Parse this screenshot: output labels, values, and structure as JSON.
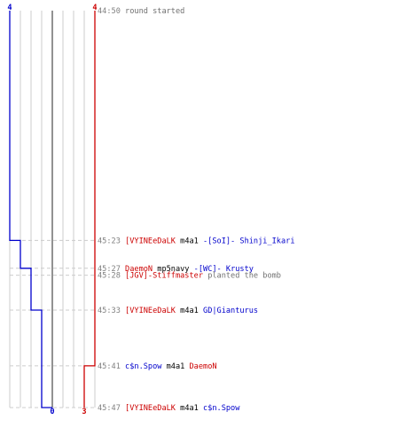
{
  "colors": {
    "team_a": "#0000cc",
    "team_b": "#cc0000",
    "time": "#808080",
    "grid": "#cccccc",
    "center": "#777777",
    "weapon": "#000000",
    "note": "#707070"
  },
  "chart_data": {
    "type": "line",
    "ylim": [
      "44:50",
      "45:47"
    ],
    "grid": true,
    "series": [
      {
        "team": "team_a",
        "start_label": "4",
        "end_label": "0",
        "x": [
          "44:50",
          "45:23",
          "45:27",
          "45:33",
          "45:47"
        ],
        "y": [
          4,
          3,
          2,
          1,
          0
        ]
      },
      {
        "team": "team_b",
        "start_label": "4",
        "end_label": "3",
        "x": [
          "44:50",
          "45:41"
        ],
        "y": [
          4,
          3
        ]
      }
    ]
  },
  "events": [
    {
      "time": "44:50",
      "note": "round started"
    },
    {
      "time": "45:23",
      "killer": "[VYINEeDaLK",
      "killer_team": "team_b",
      "weapon": "m4a1",
      "victim": "-[SoI]- Shinji_Ikari",
      "victim_team": "team_a"
    },
    {
      "time": "45:27",
      "killer": "DaemoN",
      "killer_team": "team_b",
      "weapon": "mp5navy",
      "victim": "-[WC]- Krusty",
      "victim_team": "team_a"
    },
    {
      "time": "45:28",
      "actor": "[JGV]-Stiffmaster",
      "actor_team": "team_b",
      "note": "planted the bomb"
    },
    {
      "time": "45:33",
      "killer": "[VYINEeDaLK",
      "killer_team": "team_b",
      "weapon": "m4a1",
      "victim": "GD|Gianturus",
      "victim_team": "team_a"
    },
    {
      "time": "45:41",
      "killer": "c$n.Spow",
      "killer_team": "team_a",
      "weapon": "m4a1",
      "victim": "DaemoN",
      "victim_team": "team_b"
    },
    {
      "time": "45:47",
      "killer": "[VYINEeDaLK",
      "killer_team": "team_b",
      "weapon": "m4a1",
      "victim": "c$n.Spow",
      "victim_team": "team_a"
    }
  ]
}
